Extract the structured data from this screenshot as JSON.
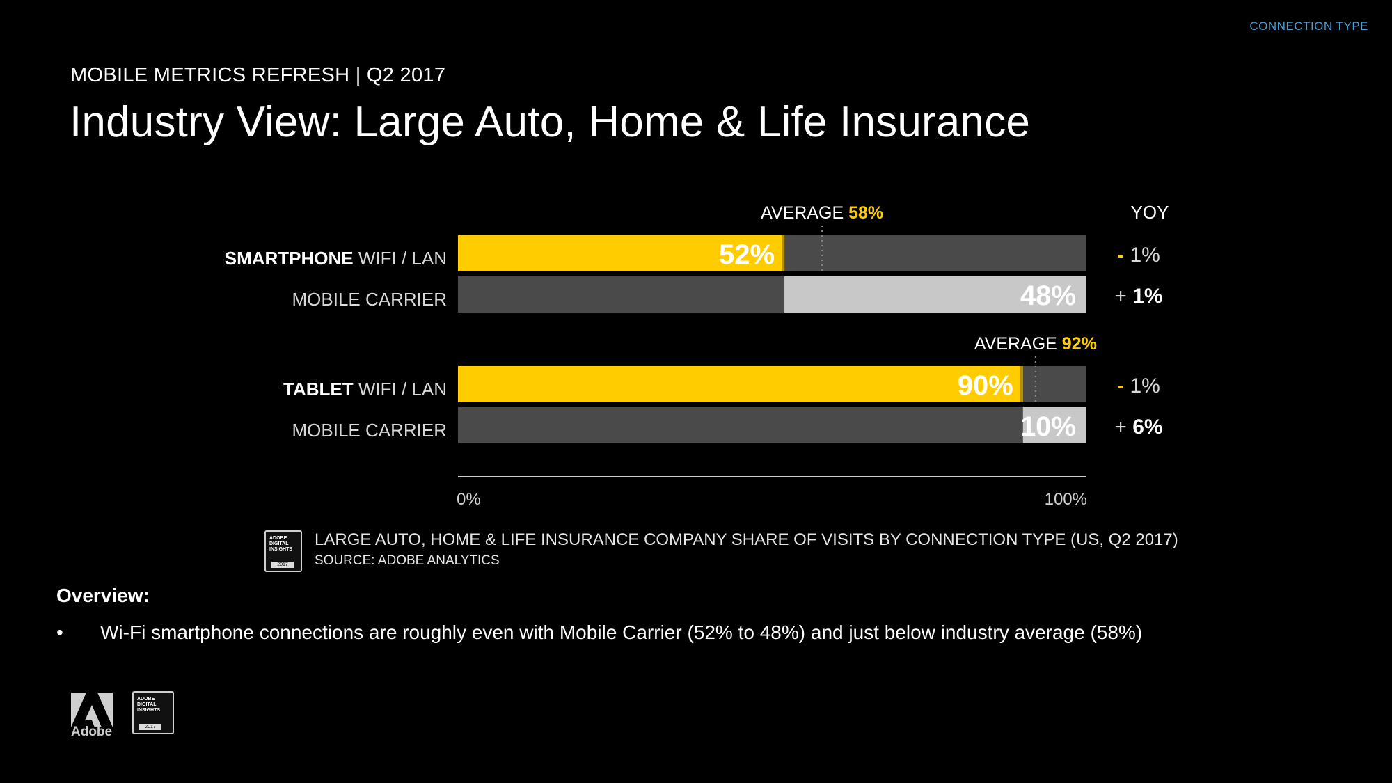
{
  "header": {
    "section_tag": "CONNECTION TYPE",
    "eyebrow": "MOBILE METRICS REFRESH | Q2 2017",
    "title": "Industry View: Large Auto, Home & Life Insurance"
  },
  "chart_data": {
    "type": "bar",
    "orientation": "horizontal",
    "stacked": "100%",
    "yoy_header": "YOY",
    "groups": [
      {
        "device": "SMARTPHONE",
        "average_label": "AVERAGE",
        "average_value": "58%",
        "average": 58,
        "rows": [
          {
            "label": "WIFI / LAN",
            "value": 52,
            "value_label": "52%",
            "yoy_sign": "-",
            "yoy_value": "1%"
          },
          {
            "label": "MOBILE CARRIER",
            "value": 48,
            "value_label": "48%",
            "yoy_sign": "+",
            "yoy_value": "1%"
          }
        ]
      },
      {
        "device": "TABLET",
        "average_label": "AVERAGE",
        "average_value": "92%",
        "average": 92,
        "rows": [
          {
            "label": "WIFI / LAN",
            "value": 90,
            "value_label": "90%",
            "yoy_sign": "-",
            "yoy_value": "1%"
          },
          {
            "label": "MOBILE CARRIER",
            "value": 10,
            "value_label": "10%",
            "yoy_sign": "+",
            "yoy_value": "6%"
          }
        ]
      }
    ],
    "x_axis": {
      "min_label": "0%",
      "max_label": "100%",
      "range": [
        0,
        100
      ]
    },
    "colors": {
      "wifi": "#ffcc00",
      "carrier": "#c8c8c8",
      "track": "#4a4a4a",
      "average": "#ffcc00"
    }
  },
  "source": {
    "caption": "LARGE AUTO, HOME & LIFE INSURANCE COMPANY SHARE OF VISITS BY CONNECTION TYPE (US, Q2 2017)",
    "note": "SOURCE: ADOBE ANALYTICS",
    "badge_text": "ADOBE DIGITAL INSIGHTS",
    "badge_year": "2017"
  },
  "overview": {
    "heading": "Overview:",
    "bullets": [
      "Wi-Fi smartphone connections are roughly even with Mobile Carrier (52% to 48%) and just below industry average (58%)"
    ]
  },
  "footer": {
    "logo_text": "Adobe",
    "badge_text": "ADOBE DIGITAL INSIGHTS",
    "badge_year": "2017"
  }
}
